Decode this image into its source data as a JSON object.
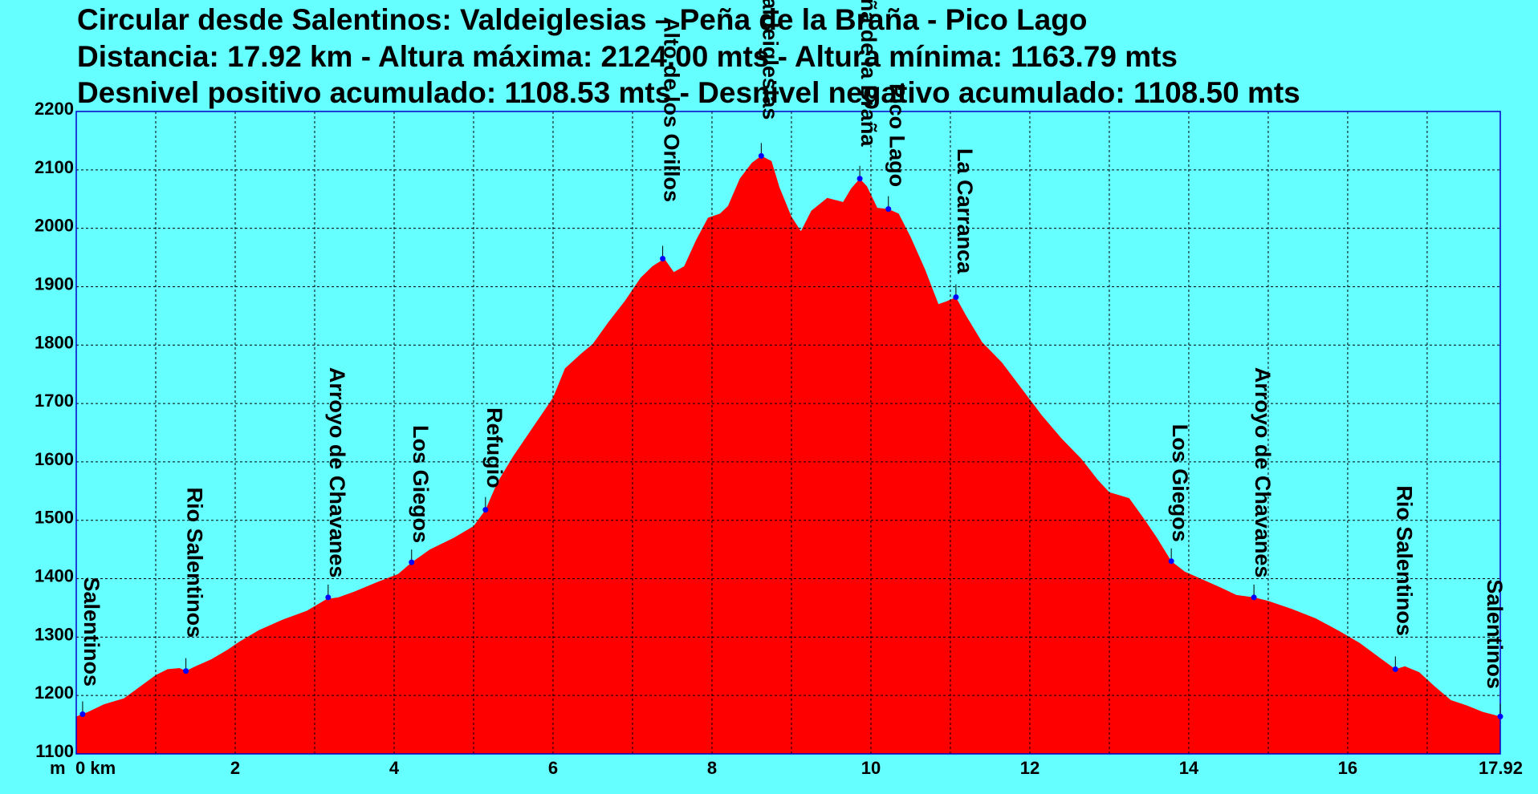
{
  "header": {
    "title": "Circular desde Salentinos: Valdeiglesias – Peña de la Braña - Pico Lago",
    "line2": "Distancia: 17.92 km - Altura máxima: 2124.00 mts - Altura mínima: 1163.79 mts",
    "line3": "Desnivel positivo acumulado: 1108.53 mts - Desnivel negativo acumulado: 1108.50 mts"
  },
  "colors": {
    "background": "#66ffff",
    "fill": "#ff0000",
    "marker": "#0000ff",
    "grid": "#000000"
  },
  "chart_data": {
    "type": "area",
    "title": "Circular desde Salentinos: Valdeiglesias – Peña de la Braña - Pico Lago",
    "xlabel": "km",
    "ylabel": "m",
    "xlim": [
      0,
      17.92
    ],
    "ylim": [
      1100,
      2200
    ],
    "grid": true,
    "x_ticks": [
      {
        "value": 0,
        "label": "0 km"
      },
      {
        "value": 2,
        "label": "2"
      },
      {
        "value": 4,
        "label": "4"
      },
      {
        "value": 6,
        "label": "6"
      },
      {
        "value": 8,
        "label": "8"
      },
      {
        "value": 10,
        "label": "10"
      },
      {
        "value": 12,
        "label": "12"
      },
      {
        "value": 14,
        "label": "14"
      },
      {
        "value": 16,
        "label": "16"
      },
      {
        "value": 17.92,
        "label": "17.92"
      }
    ],
    "x_grid": [
      0,
      1,
      2,
      3,
      4,
      5,
      6,
      7,
      8,
      9,
      10,
      11,
      12,
      13,
      14,
      15,
      16,
      17,
      17.92
    ],
    "y_ticks": [
      {
        "value": 1100,
        "label": "1100"
      },
      {
        "value": 1200,
        "label": "1200"
      },
      {
        "value": 1300,
        "label": "1300"
      },
      {
        "value": 1400,
        "label": "1400"
      },
      {
        "value": 1500,
        "label": "1500"
      },
      {
        "value": 1600,
        "label": "1600"
      },
      {
        "value": 1700,
        "label": "1700"
      },
      {
        "value": 1800,
        "label": "1800"
      },
      {
        "value": 1900,
        "label": "1900"
      },
      {
        "value": 2000,
        "label": "2000"
      },
      {
        "value": 2100,
        "label": "2100"
      },
      {
        "value": 2200,
        "label": "2200"
      }
    ],
    "y_unit_label": "m",
    "profile": [
      [
        0,
        1164
      ],
      [
        0.15,
        1172
      ],
      [
        0.35,
        1185
      ],
      [
        0.6,
        1195
      ],
      [
        0.8,
        1215
      ],
      [
        1.0,
        1235
      ],
      [
        1.15,
        1245
      ],
      [
        1.3,
        1247
      ],
      [
        1.38,
        1242
      ],
      [
        1.5,
        1250
      ],
      [
        1.7,
        1262
      ],
      [
        1.9,
        1278
      ],
      [
        2.05,
        1292
      ],
      [
        2.3,
        1312
      ],
      [
        2.6,
        1330
      ],
      [
        2.9,
        1345
      ],
      [
        3.15,
        1365
      ],
      [
        3.3,
        1368
      ],
      [
        3.5,
        1378
      ],
      [
        3.8,
        1395
      ],
      [
        4.05,
        1408
      ],
      [
        4.22,
        1428
      ],
      [
        4.45,
        1450
      ],
      [
        4.75,
        1470
      ],
      [
        5.0,
        1490
      ],
      [
        5.15,
        1518
      ],
      [
        5.3,
        1565
      ],
      [
        5.5,
        1610
      ],
      [
        5.75,
        1660
      ],
      [
        6.0,
        1710
      ],
      [
        6.15,
        1760
      ],
      [
        6.35,
        1785
      ],
      [
        6.5,
        1802
      ],
      [
        6.7,
        1840
      ],
      [
        6.9,
        1875
      ],
      [
        7.1,
        1915
      ],
      [
        7.25,
        1935
      ],
      [
        7.4,
        1948
      ],
      [
        7.52,
        1925
      ],
      [
        7.65,
        1935
      ],
      [
        7.8,
        1980
      ],
      [
        7.95,
        2018
      ],
      [
        8.1,
        2025
      ],
      [
        8.2,
        2038
      ],
      [
        8.35,
        2085
      ],
      [
        8.5,
        2112
      ],
      [
        8.62,
        2124
      ],
      [
        8.75,
        2115
      ],
      [
        8.85,
        2070
      ],
      [
        9.0,
        2020
      ],
      [
        9.12,
        1995
      ],
      [
        9.25,
        2030
      ],
      [
        9.45,
        2052
      ],
      [
        9.65,
        2045
      ],
      [
        9.75,
        2068
      ],
      [
        9.86,
        2085
      ],
      [
        9.95,
        2072
      ],
      [
        10.08,
        2035
      ],
      [
        10.22,
        2033
      ],
      [
        10.35,
        2025
      ],
      [
        10.5,
        1985
      ],
      [
        10.68,
        1930
      ],
      [
        10.85,
        1870
      ],
      [
        10.95,
        1875
      ],
      [
        11.07,
        1882
      ],
      [
        11.2,
        1850
      ],
      [
        11.4,
        1805
      ],
      [
        11.65,
        1770
      ],
      [
        11.9,
        1725
      ],
      [
        12.15,
        1680
      ],
      [
        12.4,
        1640
      ],
      [
        12.65,
        1605
      ],
      [
        12.85,
        1570
      ],
      [
        13.0,
        1548
      ],
      [
        13.25,
        1538
      ],
      [
        13.45,
        1500
      ],
      [
        13.6,
        1470
      ],
      [
        13.78,
        1430
      ],
      [
        13.95,
        1412
      ],
      [
        14.15,
        1400
      ],
      [
        14.4,
        1385
      ],
      [
        14.6,
        1372
      ],
      [
        14.82,
        1368
      ],
      [
        15.0,
        1362
      ],
      [
        15.3,
        1348
      ],
      [
        15.6,
        1332
      ],
      [
        15.9,
        1310
      ],
      [
        16.15,
        1290
      ],
      [
        16.4,
        1265
      ],
      [
        16.6,
        1245
      ],
      [
        16.72,
        1250
      ],
      [
        16.9,
        1240
      ],
      [
        17.1,
        1215
      ],
      [
        17.3,
        1192
      ],
      [
        17.5,
        1183
      ],
      [
        17.7,
        1172
      ],
      [
        17.92,
        1164
      ]
    ],
    "waypoints": [
      {
        "name": "Salentinos",
        "x": 0.08,
        "y": 1168
      },
      {
        "name": "Rio Salentinos",
        "x": 1.38,
        "y": 1242
      },
      {
        "name": "Arroyo de Chavanes",
        "x": 3.17,
        "y": 1368
      },
      {
        "name": "Los Giegos",
        "x": 4.22,
        "y": 1428
      },
      {
        "name": "Refugio",
        "x": 5.15,
        "y": 1518
      },
      {
        "name": "Alto de los Orillos",
        "x": 7.38,
        "y": 1948
      },
      {
        "name": "Valdeiglesias",
        "x": 8.62,
        "y": 2124
      },
      {
        "name": "Peña de la Braña",
        "x": 9.86,
        "y": 2085
      },
      {
        "name": "Pico Lago",
        "x": 10.22,
        "y": 2033
      },
      {
        "name": "La Carranca",
        "x": 11.07,
        "y": 1882
      },
      {
        "name": "Los Giegos",
        "x": 13.78,
        "y": 1430
      },
      {
        "name": "Arroyo de Chavanes",
        "x": 14.82,
        "y": 1368
      },
      {
        "name": "Rio Salentinos",
        "x": 16.6,
        "y": 1245
      },
      {
        "name": "Salentinos",
        "x": 17.92,
        "y": 1164
      }
    ]
  }
}
